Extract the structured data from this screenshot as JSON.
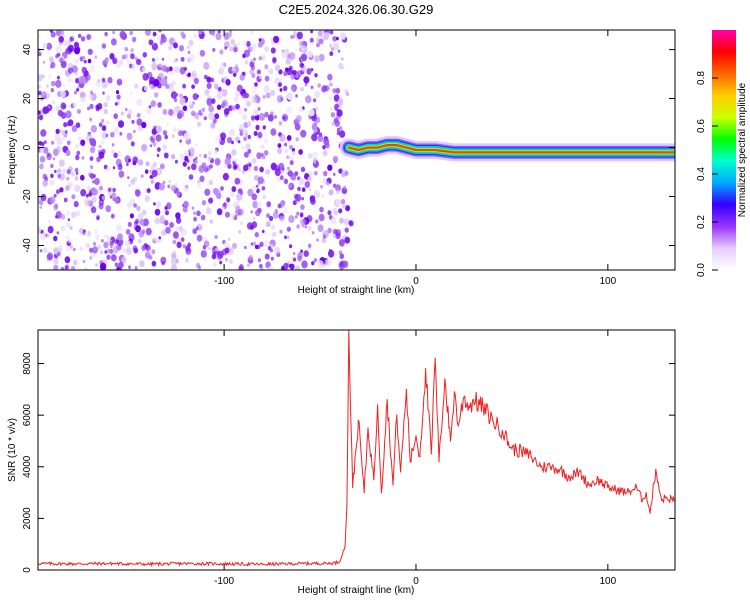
{
  "title": "C2E5.2024.326.06.30.G29",
  "chart_data": [
    {
      "type": "heatmap",
      "xlabel": "Height of straight line (km)",
      "ylabel": "Frequency (Hz)",
      "xlim": [
        -197,
        135
      ],
      "ylim": [
        -50,
        48
      ],
      "xticks": [
        -100,
        0,
        100
      ],
      "xtick_labels": [
        "-100",
        "0",
        "100"
      ],
      "yticks": [
        -40,
        -20,
        0,
        20,
        40
      ],
      "ytick_labels": [
        "-40",
        "-20",
        "0",
        "20",
        "40"
      ],
      "noise_region_x": [
        -197,
        -35
      ],
      "signal_track": [
        {
          "x": -35,
          "y": 0
        },
        {
          "x": -30,
          "y": -1
        },
        {
          "x": -25,
          "y": 0
        },
        {
          "x": -20,
          "y": 0
        },
        {
          "x": -15,
          "y": 1
        },
        {
          "x": -10,
          "y": 1
        },
        {
          "x": -5,
          "y": 0
        },
        {
          "x": 0,
          "y": -1
        },
        {
          "x": 10,
          "y": -1
        },
        {
          "x": 20,
          "y": -2
        },
        {
          "x": 40,
          "y": -2
        },
        {
          "x": 60,
          "y": -2
        },
        {
          "x": 80,
          "y": -2
        },
        {
          "x": 100,
          "y": -2
        },
        {
          "x": 120,
          "y": -2
        },
        {
          "x": 135,
          "y": -2
        }
      ],
      "colorbar": {
        "label": "Normalized spectral amplitude",
        "range": [
          0,
          1
        ],
        "ticks": [
          0,
          0.2,
          0.4,
          0.6,
          0.8
        ],
        "tick_labels": [
          "0.0",
          "0.2",
          "0.4",
          "0.6",
          "0.8"
        ],
        "colors": [
          "#ffffff",
          "#e6ccff",
          "#9933ff",
          "#3300ff",
          "#00aaff",
          "#00ffcc",
          "#00ff00",
          "#ccff00",
          "#ffcc00",
          "#ff6600",
          "#ff0000",
          "#ff00aa"
        ]
      },
      "grid": false
    },
    {
      "type": "line",
      "xlabel": "Height of straight line (km)",
      "ylabel": "SNR (10 * v/v)",
      "xlim": [
        -197,
        135
      ],
      "ylim": [
        0,
        9300
      ],
      "xticks": [
        -100,
        0,
        100
      ],
      "xtick_labels": [
        "-100",
        "0",
        "100"
      ],
      "yticks": [
        0,
        2000,
        4000,
        6000,
        8000
      ],
      "ytick_labels": [
        "0",
        "2000",
        "4000",
        "6000",
        "8000"
      ],
      "series": [
        {
          "color": "#ee2222",
          "x": [
            -197,
            -180,
            -160,
            -140,
            -120,
            -100,
            -80,
            -60,
            -45,
            -40,
            -37,
            -36,
            -35,
            -34,
            -33,
            -30,
            -27,
            -25,
            -22,
            -20,
            -18,
            -15,
            -12,
            -10,
            -8,
            -5,
            -3,
            0,
            2,
            5,
            8,
            10,
            12,
            15,
            18,
            20,
            22,
            25,
            28,
            30,
            35,
            40,
            45,
            50,
            55,
            60,
            65,
            70,
            75,
            80,
            85,
            90,
            95,
            100,
            105,
            110,
            115,
            118,
            120,
            122,
            125,
            128,
            130,
            135
          ],
          "y": [
            250,
            240,
            250,
            230,
            250,
            240,
            220,
            250,
            260,
            300,
            900,
            2500,
            9300,
            6000,
            3200,
            5800,
            3000,
            5500,
            3500,
            6400,
            3000,
            6600,
            3300,
            6000,
            3800,
            7000,
            4200,
            5200,
            4400,
            7800,
            4500,
            8200,
            4200,
            7400,
            5000,
            6900,
            5600,
            6700,
            6300,
            6600,
            6300,
            5800,
            5400,
            4700,
            4600,
            4400,
            4000,
            4000,
            3900,
            3600,
            3800,
            3300,
            3500,
            3200,
            3100,
            3000,
            3200,
            2700,
            3000,
            2200,
            3900,
            2700,
            2800,
            2700
          ]
        }
      ],
      "grid": false
    }
  ]
}
